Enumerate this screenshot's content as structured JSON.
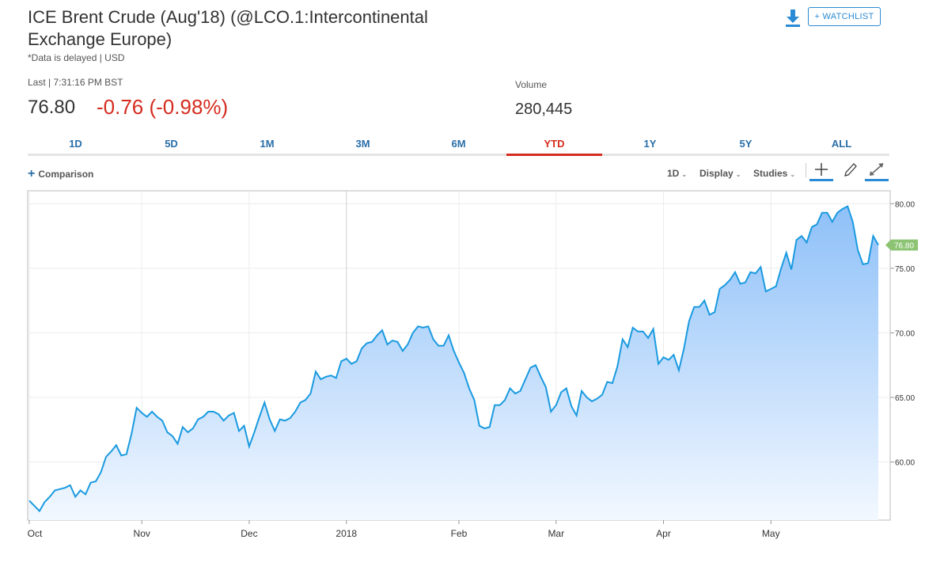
{
  "header": {
    "title": "ICE Brent Crude (Aug'18) (@LCO.1:Intercontinental Exchange Europe)",
    "delayed_note": "*Data is delayed | USD",
    "watchlist_label": "+ WATCHLIST",
    "download_icon": "download-icon"
  },
  "quote": {
    "last_label": "Last | 7:31:16 PM BST",
    "last_price": "76.80",
    "change": "-0.76 (-0.98%)",
    "volume_label": "Volume",
    "volume_value": "280,445"
  },
  "tabs": [
    "1D",
    "5D",
    "1M",
    "3M",
    "6M",
    "YTD",
    "1Y",
    "5Y",
    "ALL"
  ],
  "active_tab": "YTD",
  "toolbar": {
    "comparison_label": "Comparison",
    "interval_label": "1D",
    "display_label": "Display",
    "studies_label": "Studies",
    "icons": [
      "crosshair-icon",
      "pencil-icon",
      "expand-icon"
    ]
  },
  "colors": {
    "line": "#1a9ae0",
    "fill_top": "#8ec0f8",
    "fill_bottom": "#f2f8ff",
    "negative": "#d52b1e",
    "accent": "#2a8ad4",
    "price_tag": "#8cc474"
  },
  "chart_data": {
    "type": "area",
    "y_ticks": [
      "80.00",
      "75.00",
      "70.00",
      "65.00",
      "60.00"
    ],
    "ylim": [
      55.5,
      81
    ],
    "x_ticks": [
      {
        "label": "Oct",
        "i": 0
      },
      {
        "label": "Nov",
        "i": 22
      },
      {
        "label": "Dec",
        "i": 43
      },
      {
        "label": "2018",
        "i": 62
      },
      {
        "label": "Feb",
        "i": 84
      },
      {
        "label": "Mar",
        "i": 103
      },
      {
        "label": "Apr",
        "i": 124
      },
      {
        "label": "May",
        "i": 145
      }
    ],
    "last_price_tag": "76.80",
    "values": [
      57.0,
      56.6,
      56.2,
      56.9,
      57.3,
      57.8,
      57.9,
      58.0,
      58.2,
      57.3,
      57.8,
      57.5,
      58.4,
      58.5,
      59.2,
      60.4,
      60.8,
      61.3,
      60.5,
      60.6,
      62.2,
      64.2,
      63.8,
      63.5,
      63.9,
      63.5,
      63.2,
      62.3,
      62.0,
      61.4,
      62.7,
      62.3,
      62.6,
      63.3,
      63.5,
      63.9,
      63.9,
      63.7,
      63.2,
      63.6,
      63.8,
      62.4,
      62.8,
      61.2,
      62.3,
      63.5,
      64.6,
      63.3,
      62.4,
      63.3,
      63.2,
      63.4,
      63.9,
      64.6,
      64.8,
      65.3,
      67.0,
      66.4,
      66.6,
      66.7,
      66.5,
      67.8,
      68.0,
      67.6,
      67.8,
      68.8,
      69.2,
      69.3,
      69.8,
      70.2,
      69.1,
      69.4,
      69.3,
      68.6,
      69.1,
      70.0,
      70.5,
      70.4,
      70.5,
      69.5,
      69.0,
      69.0,
      69.8,
      68.6,
      67.7,
      66.9,
      65.7,
      64.8,
      62.8,
      62.6,
      62.7,
      64.4,
      64.4,
      64.8,
      65.7,
      65.3,
      65.5,
      66.4,
      67.3,
      67.5,
      66.6,
      65.8,
      63.9,
      64.4,
      65.4,
      65.7,
      64.3,
      63.6,
      65.5,
      65.0,
      64.7,
      64.9,
      65.2,
      66.2,
      66.1,
      67.4,
      69.5,
      68.9,
      70.4,
      70.1,
      70.1,
      69.6,
      70.3,
      67.6,
      68.1,
      67.9,
      68.3,
      67.1,
      68.8,
      70.9,
      72.0,
      72.0,
      72.5,
      71.4,
      71.6,
      73.4,
      73.7,
      74.1,
      74.7,
      73.8,
      73.9,
      74.7,
      74.6,
      75.1,
      73.2,
      73.4,
      73.6,
      75.0,
      76.2,
      74.9,
      77.2,
      77.5,
      77.0,
      78.2,
      78.4,
      79.3,
      79.3,
      78.6,
      79.3,
      79.6,
      79.8,
      78.6,
      76.4,
      75.3,
      75.4,
      77.5,
      76.8
    ]
  }
}
